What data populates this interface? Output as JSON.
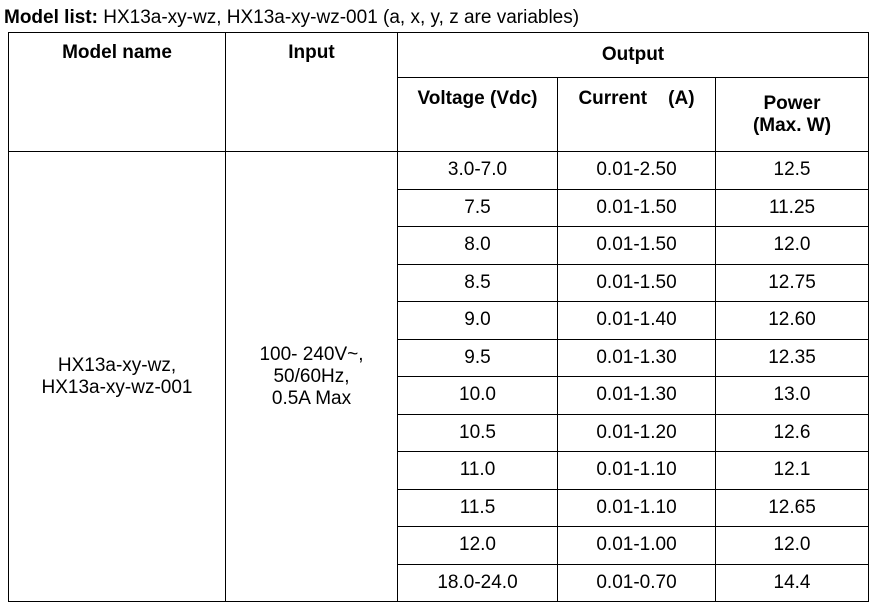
{
  "header": {
    "label": "Model list:",
    "text": "HX13a-xy-wz, HX13a-xy-wz-001 (a, x, y, z are variables)"
  },
  "table": {
    "headers": {
      "model_name": "Model name",
      "input": "Input",
      "output": "Output",
      "voltage": "Voltage (Vdc)",
      "current": "Current    (A)",
      "power": [
        "Power",
        "(Max. W)"
      ]
    },
    "model": [
      "HX13a-xy-wz,",
      "HX13a-xy-wz-001"
    ],
    "input": [
      "100- 240V~,",
      "50/60Hz,",
      "0.5A Max"
    ],
    "rows": [
      [
        "3.0-7.0",
        "0.01-2.50",
        "12.5"
      ],
      [
        "7.5",
        "0.01-1.50",
        "11.25"
      ],
      [
        "8.0",
        "0.01-1.50",
        "12.0"
      ],
      [
        "8.5",
        "0.01-1.50",
        "12.75"
      ],
      [
        "9.0",
        "0.01-1.40",
        "12.60"
      ],
      [
        "9.5",
        "0.01-1.30",
        "12.35"
      ],
      [
        "10.0",
        "0.01-1.30",
        "13.0"
      ],
      [
        "10.5",
        "0.01-1.20",
        "12.6"
      ],
      [
        "11.0",
        "0.01-1.10",
        "12.1"
      ],
      [
        "11.5",
        "0.01-1.10",
        "12.65"
      ],
      [
        "12.0",
        "0.01-1.00",
        "12.0"
      ],
      [
        "18.0-24.0",
        "0.01-0.70",
        "14.4"
      ]
    ]
  }
}
